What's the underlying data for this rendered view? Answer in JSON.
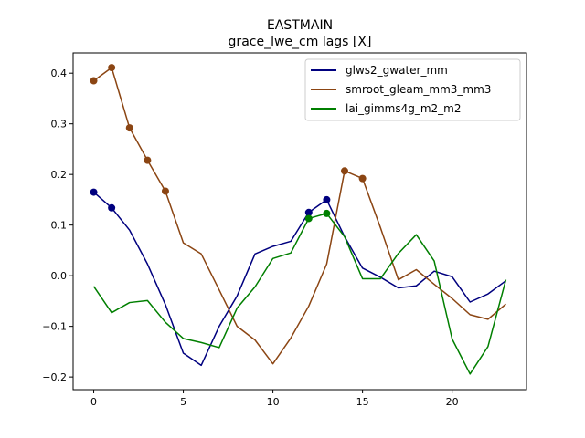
{
  "chart_data": {
    "type": "line",
    "title": "EASTMAIN",
    "subtitle": "grace_lwe_cm lags [X]",
    "xlabel": "",
    "ylabel": "",
    "xlim": [
      -1.15,
      24.15
    ],
    "ylim": [
      -0.225,
      0.44
    ],
    "xticks": [
      0,
      5,
      10,
      15,
      20
    ],
    "yticks": [
      -0.2,
      -0.1,
      0.0,
      0.1,
      0.2,
      0.3,
      0.4
    ],
    "ytick_labels": [
      "−0.2",
      "−0.1",
      "0.0",
      "0.1",
      "0.2",
      "0.3",
      "0.4"
    ],
    "grid": false,
    "legend": "top-right",
    "x": [
      0,
      1,
      2,
      3,
      4,
      5,
      6,
      7,
      8,
      9,
      10,
      11,
      12,
      13,
      14,
      15,
      16,
      17,
      18,
      19,
      20,
      21,
      22,
      23
    ],
    "series": [
      {
        "name": "glws2_gwater_mm",
        "color": "#00007f",
        "values": [
          0.165,
          0.134,
          0.09,
          0.023,
          -0.057,
          -0.153,
          -0.177,
          -0.1,
          -0.04,
          0.043,
          0.058,
          0.068,
          0.125,
          0.15,
          0.077,
          0.015,
          -0.003,
          -0.024,
          -0.02,
          0.009,
          -0.002,
          -0.052,
          -0.036,
          -0.01
        ],
        "markers": [
          0,
          1,
          12,
          13
        ]
      },
      {
        "name": "smroot_gleam_mm3_mm3",
        "color": "#8b4513",
        "values": [
          0.385,
          0.411,
          0.292,
          0.228,
          0.167,
          0.065,
          0.043,
          -0.028,
          -0.1,
          -0.127,
          -0.174,
          -0.123,
          -0.06,
          0.023,
          0.207,
          0.192,
          0.095,
          -0.008,
          0.012,
          -0.017,
          -0.045,
          -0.077,
          -0.086,
          -0.056
        ],
        "markers": [
          0,
          1,
          2,
          3,
          4,
          14,
          15
        ]
      },
      {
        "name": "lai_gimms4g_m2_m2",
        "color": "#007f00",
        "values": [
          -0.021,
          -0.073,
          -0.053,
          -0.049,
          -0.092,
          -0.124,
          -0.132,
          -0.142,
          -0.064,
          -0.022,
          0.034,
          0.045,
          0.113,
          0.123,
          0.077,
          -0.006,
          -0.006,
          0.044,
          0.081,
          0.029,
          -0.125,
          -0.194,
          -0.14,
          -0.008
        ],
        "markers": [
          12,
          13
        ]
      }
    ]
  }
}
